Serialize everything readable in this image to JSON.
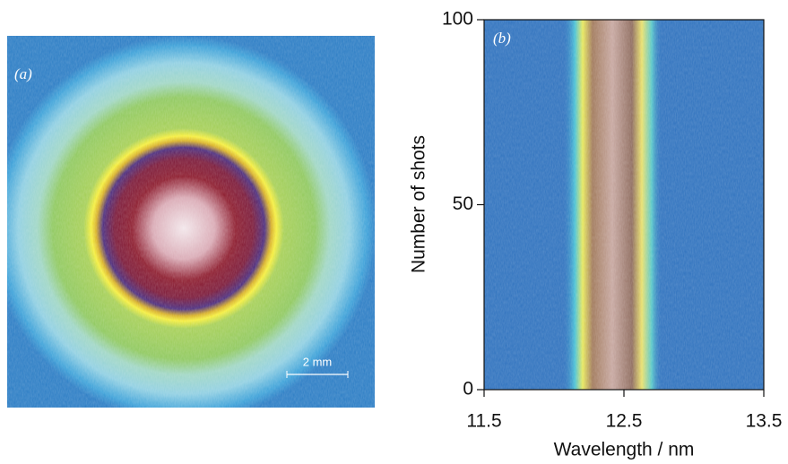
{
  "chart_data": [
    {
      "type": "image",
      "panel_label": "(a)",
      "scale_bar_label": "2 mm"
    },
    {
      "type": "spectrogram",
      "panel_label": "(b)",
      "xlabel": "Wavelength / nm",
      "ylabel": "Number of shots",
      "xlim": [
        11.5,
        13.5
      ],
      "xticks": [
        11.5,
        12.5,
        13.5
      ],
      "ylim": [
        0,
        100
      ],
      "yticks": [
        0,
        50,
        100
      ]
    }
  ]
}
